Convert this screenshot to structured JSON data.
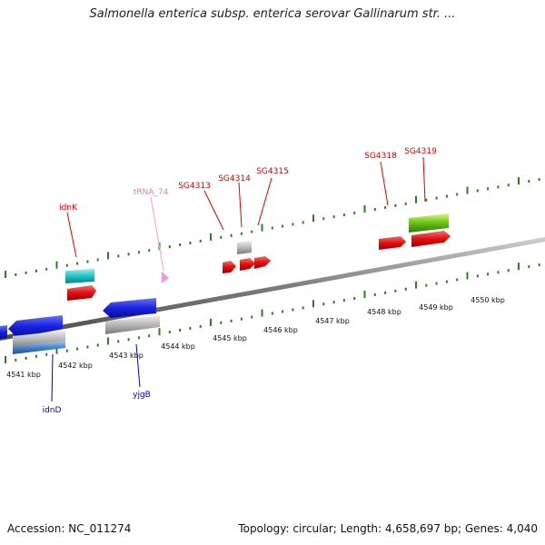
{
  "title": "Salmonella enterica subsp. enterica serovar Gallinarum str. ...",
  "footer": {
    "accession": "Accession: NC_011274",
    "summary": "Topology: circular; Length: 4,658,697 bp; Genes: 4,040"
  },
  "colors": {
    "backbone": "#8a8a8a",
    "tick": "#2e7d1f",
    "label_red": "#dd0000",
    "label_blue": "#0000bb",
    "label_pink": "#e07cc0",
    "gene_red": "#e01010",
    "gene_blue": "#1a22e0",
    "gene_cyan": "#22c2c8",
    "gene_gray": "#b8b8b8",
    "gene_green": "#7ccc22",
    "gene_lightblue": "#4a86c8",
    "trna_pink": "#f29ad8"
  },
  "kbp_labels": [
    "4541 kbp",
    "4542 kbp",
    "4543 kbp",
    "4544 kbp",
    "4545 kbp",
    "4546 kbp",
    "4547 kbp",
    "4548 kbp",
    "4549 kbp",
    "4550 kbp"
  ],
  "gene_labels": [
    {
      "text": "idnK",
      "color": "red"
    },
    {
      "text": "tRNA_74",
      "color": "pink"
    },
    {
      "text": "SG4313",
      "color": "red"
    },
    {
      "text": "SG4314",
      "color": "red"
    },
    {
      "text": "SG4315",
      "color": "red"
    },
    {
      "text": "SG4318",
      "color": "red"
    },
    {
      "text": "SG4319",
      "color": "red"
    },
    {
      "text": "idnD",
      "color": "blue"
    },
    {
      "text": "yjgB",
      "color": "blue"
    }
  ]
}
